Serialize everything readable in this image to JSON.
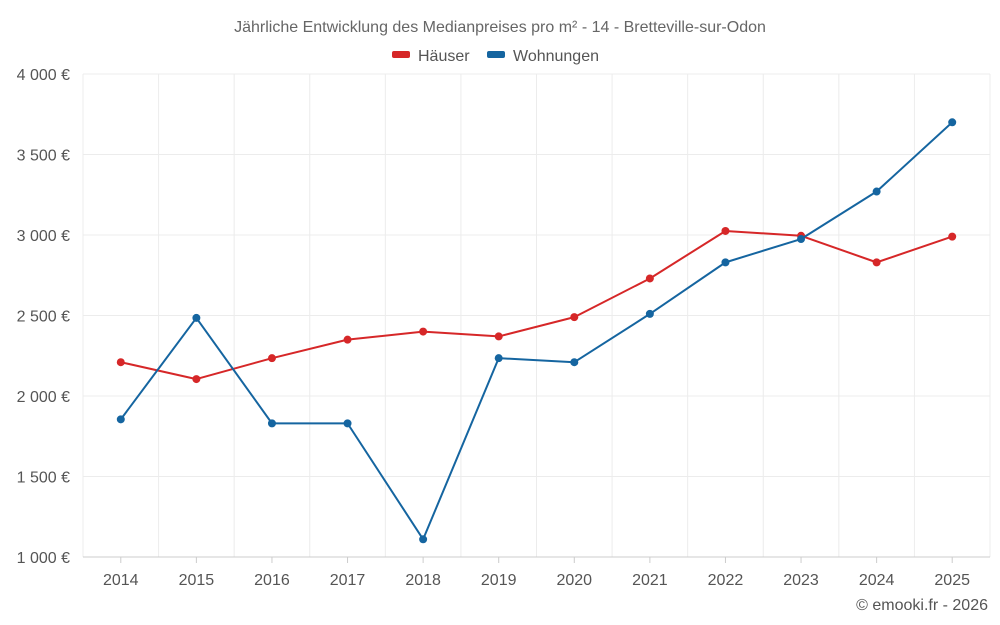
{
  "chart_data": {
    "type": "line",
    "title": "Jährliche Entwicklung des Medianpreises pro m² - 14 - Bretteville-sur-Odon",
    "xlabel": "",
    "ylabel": "",
    "categories": [
      "2014",
      "2015",
      "2016",
      "2017",
      "2018",
      "2019",
      "2020",
      "2021",
      "2022",
      "2023",
      "2024",
      "2025"
    ],
    "ylim": [
      1000,
      4000
    ],
    "yticks": [
      1000,
      1500,
      2000,
      2500,
      3000,
      3500,
      4000
    ],
    "ytick_labels": [
      "1 000 €",
      "1 500 €",
      "2 000 €",
      "2 500 €",
      "3 000 €",
      "3 500 €",
      "4 000 €"
    ],
    "grid": true,
    "legend_position": "top-center",
    "series": [
      {
        "name": "Häuser",
        "color": "#d62728",
        "values": [
          2210,
          2105,
          2235,
          2350,
          2400,
          2370,
          2490,
          2730,
          3025,
          2995,
          2830,
          2990
        ]
      },
      {
        "name": "Wohnungen",
        "color": "#1565a0",
        "values": [
          1855,
          2485,
          1830,
          1830,
          1110,
          2235,
          2210,
          2510,
          2830,
          2975,
          3270,
          3700
        ]
      }
    ]
  },
  "credit": "© emooki.fr - 2026"
}
